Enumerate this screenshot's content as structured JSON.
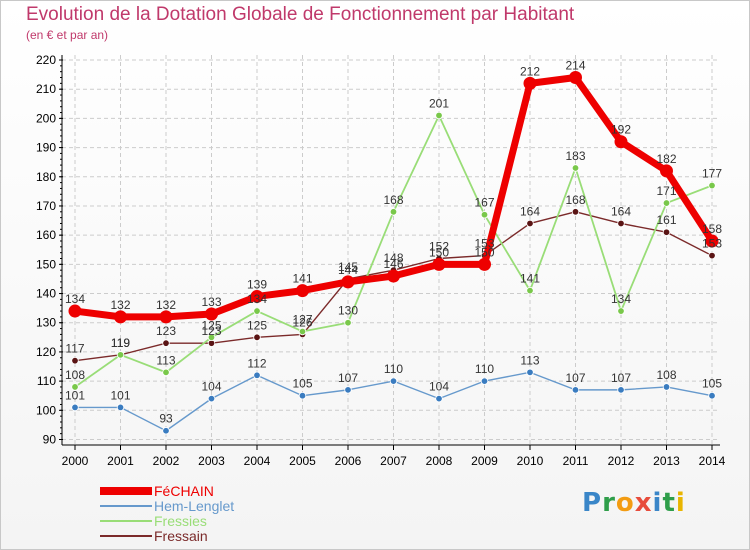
{
  "title": "Evolution de la Dotation Globale de Fonctionnement par Habitant",
  "subtitle": "(en € et par an)",
  "colors": {
    "title": "#c0396b",
    "grid": "#cccccc",
    "axis": "#000000"
  },
  "logo": {
    "text": "Proxiti",
    "letters": [
      "P",
      "r",
      "o",
      "x",
      "i",
      "t",
      "i"
    ],
    "colors": [
      "#3a86c8",
      "#2f9e4a",
      "#f39c12",
      "#e74c3c",
      "#3a86c8",
      "#2f9e4a",
      "#e9b500"
    ]
  },
  "chart_data": {
    "type": "line",
    "title": "Evolution de la Dotation Globale de Fonctionnement par Habitant",
    "subtitle": "(en € et par an)",
    "xlabel": "",
    "ylabel": "",
    "categories": [
      "2000",
      "2001",
      "2002",
      "2003",
      "2004",
      "2005",
      "2006",
      "2007",
      "2008",
      "2009",
      "2010",
      "2011",
      "2012",
      "2013",
      "2014"
    ],
    "ylim": [
      90,
      220
    ],
    "yticks": [
      90,
      100,
      110,
      120,
      130,
      140,
      150,
      160,
      170,
      180,
      190,
      200,
      210,
      220
    ],
    "grid": true,
    "legend_position": "bottom-left",
    "series": [
      {
        "name": "Fressain",
        "color": "#7b2a2a",
        "marker_color": "#5a1414",
        "line_width": 1.4,
        "marker_radius": 3.3,
        "values": [
          117,
          119,
          123,
          123,
          125,
          126,
          145,
          148,
          152,
          153,
          164,
          168,
          164,
          161,
          153
        ],
        "labels": [
          "117",
          "119",
          "123",
          "123",
          "125",
          "126",
          "145",
          "148",
          "152",
          "153",
          "164",
          "168",
          "164",
          "161",
          "153"
        ]
      },
      {
        "name": "Fressies",
        "color": "#99dd77",
        "marker_color": "#79c84a",
        "line_width": 1.8,
        "marker_radius": 3.3,
        "values": [
          108,
          119,
          113,
          125,
          134,
          127,
          130,
          168,
          201,
          167,
          141,
          183,
          134,
          171,
          177
        ],
        "labels": [
          "108",
          "119",
          "113",
          "125",
          "134",
          "127",
          "130",
          "168",
          "201",
          "167",
          "141",
          "183",
          "134",
          "171",
          "177"
        ]
      },
      {
        "name": "Hem-Lenglet",
        "color": "#6699cc",
        "marker_color": "#3a7cc0",
        "line_width": 1.4,
        "marker_radius": 3.3,
        "values": [
          101,
          101,
          93,
          104,
          112,
          105,
          107,
          110,
          104,
          110,
          113,
          107,
          107,
          108,
          105
        ],
        "labels": [
          "101",
          "101",
          "93",
          "104",
          "112",
          "105",
          "107",
          "110",
          "104",
          "110",
          "113",
          "107",
          "107",
          "108",
          "105"
        ]
      },
      {
        "name": "FéCHAIN",
        "color": "#ee0000",
        "marker_color": "#ee0000",
        "line_width": 7,
        "marker_radius": 6.5,
        "values": [
          134,
          132,
          132,
          133,
          139,
          141,
          144,
          146,
          150,
          150,
          212,
          214,
          192,
          182,
          158
        ],
        "labels": [
          "134",
          "132",
          "132",
          "133",
          "139",
          "141",
          "144",
          "146",
          "150",
          "150",
          "212",
          "214",
          "192",
          "182",
          "158"
        ]
      }
    ],
    "legend_order": [
      "FéCHAIN",
      "Hem-Lenglet",
      "Fressies",
      "Fressain"
    ]
  },
  "legend": [
    {
      "label": "FéCHAIN",
      "color": "#ee0000",
      "thickness": 8
    },
    {
      "label": "Hem-Lenglet",
      "color": "#6699cc",
      "thickness": 2
    },
    {
      "label": "Fressies",
      "color": "#99dd77",
      "thickness": 2
    },
    {
      "label": "Fressain",
      "color": "#7b2a2a",
      "thickness": 2
    }
  ]
}
